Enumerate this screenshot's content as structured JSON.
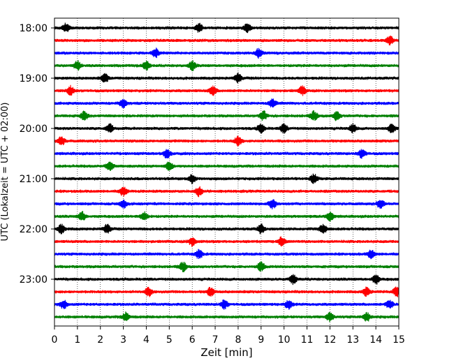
{
  "chart_data": {
    "type": "line",
    "title": "",
    "xlabel": "Zeit  [min]",
    "ylabel": "UTC (Lokalzeit = UTC + 02:00)",
    "xlim": [
      0,
      15
    ],
    "x_ticks": [
      "0",
      "1",
      "2",
      "3",
      "4",
      "5",
      "6",
      "7",
      "8",
      "9",
      "10",
      "11",
      "12",
      "13",
      "14",
      "15"
    ],
    "y_ticks": [
      "18:00",
      "19:00",
      "20:00",
      "21:00",
      "22:00",
      "23:00"
    ],
    "trace_colors": [
      "#000000",
      "#ff0000",
      "#0000ff",
      "#008000"
    ],
    "grid": "vertical-dotted",
    "trace_interval_min": 15,
    "traces": [
      {
        "start": "18:00",
        "events": [
          0.5,
          6.3,
          8.4
        ]
      },
      {
        "start": "18:15",
        "events": [
          14.6
        ]
      },
      {
        "start": "18:30",
        "events": [
          4.4,
          8.9
        ]
      },
      {
        "start": "18:45",
        "events": [
          1.0,
          4.0,
          6.0
        ]
      },
      {
        "start": "19:00",
        "events": [
          2.2,
          8.0
        ]
      },
      {
        "start": "19:15",
        "events": [
          0.7,
          6.9,
          10.8
        ]
      },
      {
        "start": "19:30",
        "events": [
          3.0,
          9.5
        ]
      },
      {
        "start": "19:45",
        "events": [
          1.3,
          9.1,
          11.3,
          12.3
        ]
      },
      {
        "start": "20:00",
        "events": [
          2.4,
          9.0,
          10.0,
          13.0,
          14.7
        ]
      },
      {
        "start": "20:15",
        "events": [
          0.3,
          8.0
        ]
      },
      {
        "start": "20:30",
        "events": [
          4.9,
          13.4
        ]
      },
      {
        "start": "20:45",
        "events": [
          2.4,
          5.0
        ]
      },
      {
        "start": "21:00",
        "events": [
          6.0,
          11.3
        ]
      },
      {
        "start": "21:15",
        "events": [
          3.0,
          6.3
        ]
      },
      {
        "start": "21:30",
        "events": [
          3.0,
          9.5,
          14.2
        ]
      },
      {
        "start": "21:45",
        "events": [
          1.2,
          3.9,
          12.0
        ]
      },
      {
        "start": "22:00",
        "events": [
          0.3,
          2.3,
          9.0,
          11.7
        ]
      },
      {
        "start": "22:15",
        "events": [
          6.0,
          9.9
        ]
      },
      {
        "start": "22:30",
        "events": [
          6.3,
          13.8
        ]
      },
      {
        "start": "22:45",
        "events": [
          5.6,
          9.0
        ]
      },
      {
        "start": "23:00",
        "events": [
          10.4,
          14.0
        ]
      },
      {
        "start": "23:15",
        "events": [
          4.1,
          6.8,
          13.6,
          14.9
        ]
      },
      {
        "start": "23:30",
        "events": [
          0.4,
          7.4,
          10.2,
          14.6
        ]
      },
      {
        "start": "23:45",
        "events": [
          3.1,
          12.0,
          13.6
        ]
      }
    ]
  }
}
